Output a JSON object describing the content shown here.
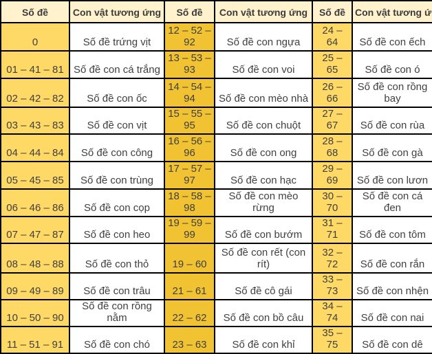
{
  "chart_data": {
    "type": "table",
    "columns": [
      "Số đề",
      "Con vật tương ứng",
      "Số đề",
      "Con vật tương ứng",
      "Số đề",
      "Con vật tương ứng"
    ],
    "rows": [
      [
        "0",
        "Số đề trứng vịt",
        "12 – 52 – 92",
        "Số đề con ngựa",
        "24 – 64",
        "Số đề con ếch"
      ],
      [
        "01 – 41 – 81",
        "Số đề con cá trắng",
        "13 – 53 – 93",
        "Số đề con voi",
        "25 – 65",
        "Số đề con ó"
      ],
      [
        "02 – 42 – 82",
        "Số đề con ốc",
        "14 – 54 – 94",
        "Số đề con mèo nhà",
        "26 – 66",
        "Số đề con rồng bay"
      ],
      [
        "03 – 43 – 83",
        "Số đề con vịt",
        "15 – 55 – 95",
        "Số đề con chuột",
        "27 – 67",
        "Số đề con rùa"
      ],
      [
        "04 – 44 – 84",
        "Số đề con công",
        "16 – 56 – 96",
        "Số đề con ong",
        "28 – 68",
        "Số đề con gà"
      ],
      [
        "05 – 45 – 85",
        "Số đề con trùng",
        "17 – 57 – 97",
        "Số đề con hạc",
        "29 – 69",
        "Số đề con lươn"
      ],
      [
        "06 – 46 – 86",
        "Số đề con cọp",
        "18 – 58 – 98",
        "Số đề con mèo rừng",
        "30 – 70",
        "Số đề con cá đen"
      ],
      [
        "07 – 47 – 87",
        "Số đề con heo",
        "19 – 59 – 99",
        "Số đề con bướm",
        "31 – 71",
        "Số đề con tôm"
      ],
      [
        "08 – 48 – 88",
        "Số đề con thỏ",
        "19 – 60",
        "Số đề con rết (con rít)",
        "32 – 72",
        "Số đề con rắn"
      ],
      [
        "09 – 49 – 89",
        "Số đề con trâu",
        "21 – 61",
        "Số đề cô gái",
        "33 – 73",
        "Số đề con nhện"
      ],
      [
        "10 – 50 – 90",
        "Số đề con rồng nằm",
        "22 – 62",
        "Số đề con bồ câu",
        "34 – 74",
        "Số đề con nai"
      ],
      [
        "11 – 51 – 91",
        "Số đề con chó",
        "23 – 63",
        "Số đề con khỉ",
        "35 – 75",
        "Số đề con dê"
      ]
    ],
    "layout": {
      "grid": "on",
      "legend": "none"
    }
  },
  "colors": {
    "header_bg": "#FFF2CC",
    "number_col_outer_bg": "#FFD966",
    "number_col_middle_bg": "#F1C232",
    "animal_col_bg": "#FFFFFF",
    "border": "#000000",
    "text": "#404040"
  }
}
